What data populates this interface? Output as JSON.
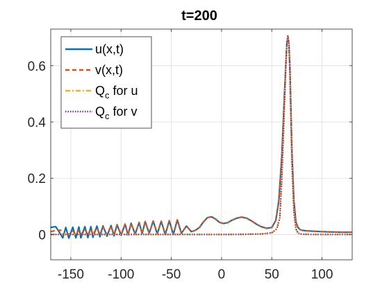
{
  "chart_data": {
    "type": "line",
    "title": "t=200",
    "xlabel": "",
    "ylabel": "",
    "xlim": [
      -170,
      130
    ],
    "ylim": [
      -0.09,
      0.73
    ],
    "xticks": [
      -150,
      -100,
      -50,
      0,
      50,
      100
    ],
    "xtick_labels": [
      "-150",
      "-100",
      "-50",
      "0",
      "50",
      "100"
    ],
    "yticks": [
      0,
      0.2,
      0.4,
      0.6
    ],
    "ytick_labels": [
      "0",
      "0.2",
      "0.4",
      "0.6"
    ],
    "grid": true,
    "legend_position": "top-left",
    "series": [
      {
        "name": "u(x,t)",
        "style": "solid",
        "color": "#0072BD",
        "x": [
          -170,
          -165,
          -160,
          -158,
          -155,
          -152,
          -148,
          -145,
          -142,
          -140,
          -136,
          -133,
          -130,
          -128,
          -124,
          -121,
          -118,
          -114,
          -110,
          -107,
          -104,
          -100,
          -96,
          -93,
          -90,
          -86,
          -82,
          -79,
          -76,
          -72,
          -68,
          -64,
          -60,
          -56,
          -52,
          -48,
          -44,
          -40,
          -35,
          -30,
          -26,
          -22,
          -18,
          -14,
          -10,
          -6,
          -2,
          2,
          6,
          10,
          15,
          20,
          25,
          30,
          35,
          40,
          45,
          50,
          54,
          57,
          60,
          62,
          64,
          65,
          66,
          67,
          68,
          69,
          70,
          72,
          74,
          76,
          78,
          80,
          85,
          90,
          100,
          110,
          120,
          130
        ],
        "y": [
          0.025,
          0.028,
          0.0,
          -0.012,
          0.025,
          -0.013,
          0.026,
          -0.012,
          0.027,
          -0.012,
          0.028,
          -0.011,
          0.028,
          -0.01,
          0.03,
          -0.008,
          0.031,
          -0.006,
          0.032,
          -0.005,
          0.035,
          -0.003,
          0.037,
          -0.002,
          0.04,
          0.001,
          0.043,
          0.003,
          0.046,
          0.004,
          0.048,
          0.002,
          0.047,
          0.0,
          0.049,
          0.0,
          0.052,
          0.004,
          0.03,
          0.01,
          0.015,
          0.025,
          0.045,
          0.06,
          0.063,
          0.055,
          0.043,
          0.039,
          0.042,
          0.05,
          0.058,
          0.062,
          0.058,
          0.048,
          0.036,
          0.027,
          0.022,
          0.025,
          0.05,
          0.12,
          0.28,
          0.45,
          0.61,
          0.68,
          0.705,
          0.68,
          0.6,
          0.45,
          0.3,
          0.12,
          0.045,
          0.025,
          0.018,
          0.015,
          0.013,
          0.012,
          0.01,
          0.009,
          0.008,
          0.008
        ]
      },
      {
        "name": "v(x,t)",
        "style": "dashed",
        "color": "#D95319",
        "x": [
          -170,
          -165,
          -160,
          -158,
          -155,
          -152,
          -148,
          -145,
          -142,
          -140,
          -136,
          -133,
          -130,
          -128,
          -124,
          -121,
          -118,
          -114,
          -110,
          -107,
          -104,
          -100,
          -96,
          -93,
          -90,
          -86,
          -82,
          -79,
          -76,
          -72,
          -68,
          -64,
          -60,
          -56,
          -52,
          -48,
          -44,
          -40,
          -35,
          -30,
          -26,
          -22,
          -18,
          -14,
          -10,
          -6,
          -2,
          2,
          6,
          10,
          15,
          20,
          25,
          30,
          35,
          40,
          45,
          50,
          54,
          57,
          60,
          62,
          64,
          65,
          66,
          67,
          68,
          69,
          70,
          72,
          74,
          76,
          78,
          80,
          85,
          90,
          100,
          110,
          120,
          130
        ],
        "y": [
          0.01,
          0.015,
          0.015,
          0.0,
          0.01,
          0.0,
          0.012,
          0.0,
          0.015,
          0.0,
          0.018,
          0.0,
          0.02,
          0.0,
          0.024,
          0.0,
          0.027,
          0.0,
          0.03,
          0.0,
          0.034,
          0.0,
          0.036,
          0.0,
          0.04,
          0.002,
          0.043,
          0.003,
          0.046,
          0.004,
          0.048,
          0.002,
          0.047,
          0.0,
          0.049,
          0.0,
          0.052,
          0.004,
          0.03,
          0.01,
          0.015,
          0.025,
          0.045,
          0.06,
          0.063,
          0.055,
          0.043,
          0.039,
          0.042,
          0.05,
          0.058,
          0.062,
          0.058,
          0.048,
          0.036,
          0.027,
          0.022,
          0.025,
          0.05,
          0.12,
          0.28,
          0.45,
          0.61,
          0.68,
          0.705,
          0.68,
          0.6,
          0.45,
          0.3,
          0.12,
          0.045,
          0.025,
          0.018,
          0.015,
          0.013,
          0.012,
          0.01,
          0.009,
          0.008,
          0.008
        ]
      },
      {
        "name": "Q_c for u",
        "label_main": "Q",
        "label_sub": "c",
        "label_rest": " for u",
        "style": "dashdot",
        "color": "#EDB120",
        "x": [
          -170,
          -100,
          -60,
          -40,
          -20,
          0,
          20,
          40,
          50,
          55,
          58,
          60,
          62,
          64,
          65,
          66,
          67,
          68,
          69,
          70,
          72,
          74,
          76,
          78,
          80,
          90,
          100,
          130
        ],
        "y": [
          0,
          0,
          0,
          0,
          0,
          0,
          0.0005,
          0.002,
          0.006,
          0.02,
          0.06,
          0.2,
          0.4,
          0.6,
          0.68,
          0.705,
          0.68,
          0.58,
          0.42,
          0.26,
          0.08,
          0.02,
          0.006,
          0.002,
          0.001,
          0,
          0,
          0
        ]
      },
      {
        "name": "Q_c for v",
        "label_main": "Q",
        "label_sub": "c",
        "label_rest": " for v",
        "style": "dotted",
        "color": "#7E2F8E",
        "x": [
          -170,
          -100,
          -60,
          -40,
          -20,
          0,
          20,
          40,
          50,
          55,
          58,
          60,
          62,
          64,
          65,
          66,
          67,
          68,
          69,
          70,
          72,
          74,
          76,
          78,
          80,
          90,
          100,
          130
        ],
        "y": [
          0,
          0,
          0,
          0,
          0,
          0,
          0.0005,
          0.002,
          0.006,
          0.02,
          0.06,
          0.2,
          0.4,
          0.6,
          0.68,
          0.705,
          0.68,
          0.58,
          0.42,
          0.26,
          0.08,
          0.02,
          0.006,
          0.002,
          0.001,
          0,
          0,
          0
        ]
      }
    ]
  }
}
